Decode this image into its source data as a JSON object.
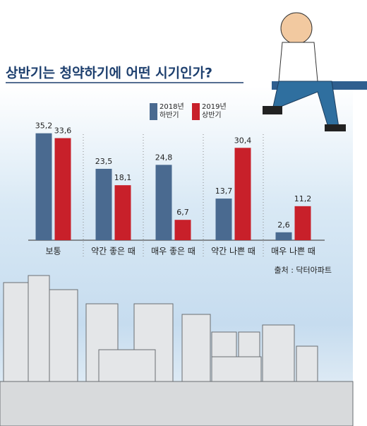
{
  "chart_data": {
    "type": "bar",
    "title": "상반기는 청약하기에 어떤 시기인가?",
    "source": "출처 : 닥터아파트",
    "categories": [
      "보통",
      "약간 좋은 때",
      "매우 좋은 때",
      "약간 나쁜 때",
      "매우 나쁜 때"
    ],
    "series": [
      {
        "name": "2018년 하반기",
        "color": "#4a6a90",
        "values": [
          35.2,
          23.5,
          24.8,
          13.7,
          2.6
        ],
        "value_labels": [
          "35,2",
          "23,5",
          "24,8",
          "13,7",
          "2,6"
        ]
      },
      {
        "name": "2019년 상반기",
        "color": "#c8202a",
        "values": [
          33.6,
          18.1,
          6.7,
          30.4,
          11.2
        ],
        "value_labels": [
          "33,6",
          "18,1",
          "6,7",
          "30,4",
          "11,2"
        ]
      }
    ]
  }
}
